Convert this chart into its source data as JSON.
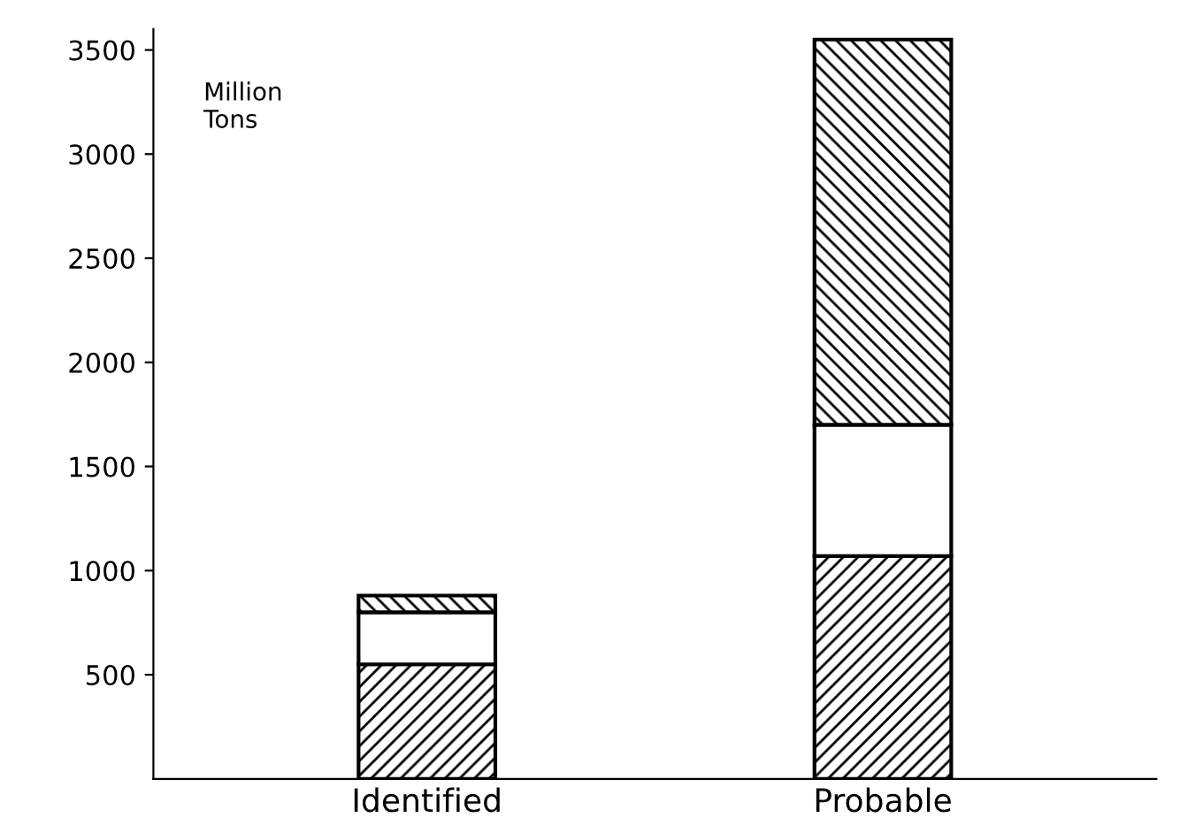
{
  "chart_data": {
    "type": "bar",
    "stacked": true,
    "ylabel": "Million\nTons",
    "categories": [
      "Identified",
      "Probable"
    ],
    "series": [
      {
        "color": "#000000",
        "values": [
          550,
          1070
        ]
      },
      {
        "color": "#ffffff",
        "values": [
          250,
          630
        ]
      },
      {
        "color": "#000000",
        "values": [
          80,
          1850
        ]
      }
    ],
    "ylim": [
      0,
      3600
    ],
    "yticks": [
      500,
      1000,
      1500,
      2000,
      2500,
      3000,
      3500
    ],
    "grid": false
  }
}
